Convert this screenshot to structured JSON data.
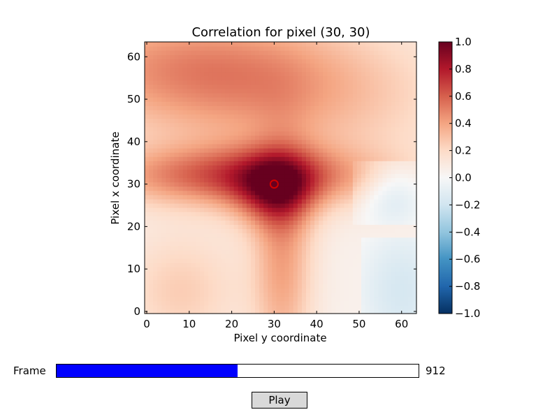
{
  "chart_data": {
    "type": "heatmap",
    "title": "Correlation for pixel (30, 30)",
    "xlabel": "Pixel y coordinate",
    "ylabel": "Pixel x coordinate",
    "xlim": [
      0,
      63
    ],
    "ylim": [
      0,
      63
    ],
    "x_ticks": [
      "0",
      "10",
      "20",
      "30",
      "40",
      "50",
      "60"
    ],
    "y_ticks": [
      "0",
      "10",
      "20",
      "30",
      "40",
      "50",
      "60"
    ],
    "colorbar": {
      "min": -1.0,
      "max": 1.0,
      "ticks": [
        "1.0",
        "0.8",
        "0.6",
        "0.4",
        "0.2",
        "0.0",
        "−0.2",
        "−0.4",
        "−0.6",
        "−0.8",
        "−1.0"
      ],
      "colormap": "RdBu_r"
    },
    "marker": {
      "x": 30,
      "y": 30,
      "color": "#d10000",
      "shape": "circle"
    },
    "grid": false
  },
  "controls": {
    "slider_label": "Frame",
    "slider_value": "912",
    "slider_fraction": 0.5,
    "play_label": "Play",
    "slider_fill_color": "#0000ff"
  }
}
